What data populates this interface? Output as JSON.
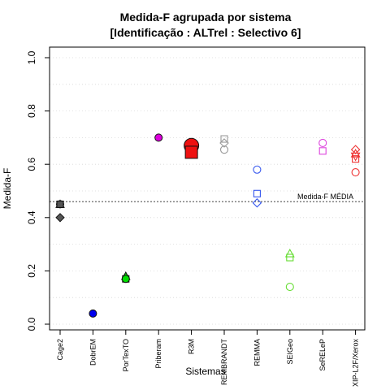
{
  "chart_data": {
    "type": "scatter",
    "title": "Medida-F agrupada por sistema",
    "subtitle": "[Identificação : ALTrel : Selectivo 6]",
    "xlabel": "Sistemas",
    "ylabel": "Medida-F",
    "ylim": [
      0.0,
      1.0
    ],
    "y_ticks": [
      "0.0",
      "0.2",
      "0.4",
      "0.6",
      "0.8",
      "1.0"
    ],
    "grid": "horizontal dotted",
    "categories": [
      "Cage2",
      "DobrEM",
      "PorTexTO",
      "Priberam",
      "R3M",
      "REMBRANDT",
      "REMMA",
      "SEIGeo",
      "SeRELeP",
      "XIP-L2F/Xerox"
    ],
    "reference_line": {
      "label": "Medida-F MÉDIA",
      "value": 0.46
    },
    "points": [
      {
        "system": "Cage2",
        "y": 0.45,
        "shape": "triangle",
        "filled": true,
        "color": "#555555"
      },
      {
        "system": "Cage2",
        "y": 0.45,
        "shape": "circle",
        "filled": true,
        "color": "#555555"
      },
      {
        "system": "Cage2",
        "y": 0.45,
        "shape": "square",
        "filled": true,
        "color": "#555555"
      },
      {
        "system": "Cage2",
        "y": 0.4,
        "shape": "diamond",
        "filled": true,
        "color": "#555555"
      },
      {
        "system": "DobrEM",
        "y": 0.04,
        "shape": "circle",
        "filled": true,
        "color": "#0000ee"
      },
      {
        "system": "PorTexTO",
        "y": 0.18,
        "shape": "triangle",
        "filled": true,
        "color": "#00dd00"
      },
      {
        "system": "PorTexTO",
        "y": 0.17,
        "shape": "square",
        "filled": true,
        "color": "#00dd00"
      },
      {
        "system": "PorTexTO",
        "y": 0.17,
        "shape": "circle",
        "filled": true,
        "color": "#00dd00"
      },
      {
        "system": "Priberam",
        "y": 0.7,
        "shape": "circle",
        "filled": true,
        "color": "#dd00dd"
      },
      {
        "system": "R3M",
        "y": 0.67,
        "shape": "circle",
        "filled": true,
        "color": "#ee1111",
        "big": true
      },
      {
        "system": "R3M",
        "y": 0.645,
        "shape": "square",
        "filled": true,
        "color": "#ee1111",
        "big": true
      },
      {
        "system": "REMBRANDT",
        "y": 0.695,
        "shape": "square",
        "filled": false,
        "color": "#999999"
      },
      {
        "system": "REMBRANDT",
        "y": 0.68,
        "shape": "diamond",
        "filled": false,
        "color": "#999999"
      },
      {
        "system": "REMBRANDT",
        "y": 0.655,
        "shape": "circle",
        "filled": false,
        "color": "#999999"
      },
      {
        "system": "REMMA",
        "y": 0.58,
        "shape": "circle",
        "filled": false,
        "color": "#3355ee"
      },
      {
        "system": "REMMA",
        "y": 0.49,
        "shape": "square",
        "filled": false,
        "color": "#3355ee"
      },
      {
        "system": "REMMA",
        "y": 0.455,
        "shape": "diamond",
        "filled": false,
        "color": "#3355ee"
      },
      {
        "system": "SEIGeo",
        "y": 0.265,
        "shape": "triangle",
        "filled": false,
        "color": "#66dd33"
      },
      {
        "system": "SEIGeo",
        "y": 0.25,
        "shape": "square",
        "filled": false,
        "color": "#66dd33"
      },
      {
        "system": "SEIGeo",
        "y": 0.14,
        "shape": "circle",
        "filled": false,
        "color": "#66dd33"
      },
      {
        "system": "SeRELeP",
        "y": 0.68,
        "shape": "circle",
        "filled": false,
        "color": "#dd44dd"
      },
      {
        "system": "SeRELeP",
        "y": 0.65,
        "shape": "square",
        "filled": false,
        "color": "#dd44dd"
      },
      {
        "system": "XIP-L2F/Xerox",
        "y": 0.655,
        "shape": "diamond",
        "filled": false,
        "color": "#ee3333"
      },
      {
        "system": "XIP-L2F/Xerox",
        "y": 0.64,
        "shape": "triangle",
        "filled": false,
        "color": "#ee3333"
      },
      {
        "system": "XIP-L2F/Xerox",
        "y": 0.63,
        "shape": "triangle-down",
        "filled": false,
        "color": "#ee3333"
      },
      {
        "system": "XIP-L2F/Xerox",
        "y": 0.62,
        "shape": "square",
        "filled": false,
        "color": "#ee3333"
      },
      {
        "system": "XIP-L2F/Xerox",
        "y": 0.57,
        "shape": "circle",
        "filled": false,
        "color": "#ee3333"
      }
    ]
  }
}
